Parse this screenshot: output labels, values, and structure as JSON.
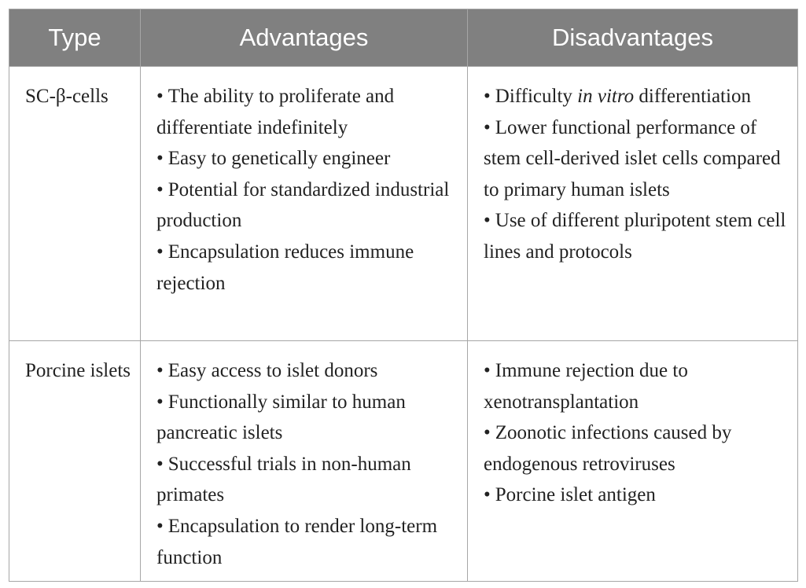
{
  "headers": [
    "Type",
    "Advantages",
    "Disadvantages"
  ],
  "rows": [
    {
      "type": "SC-β-cells",
      "advantages": [
        "The ability to proliferate and differentiate indefinitely",
        "Easy to genetically engineer",
        "Potential for standardized industrial production",
        "Encapsulation reduces immune rejection"
      ],
      "disadvantages_first": {
        "before": "Difficulty ",
        "italic": "in vitro",
        "after": " differentiation"
      },
      "disadvantages": [
        "Lower functional performance of stem cell-derived islet cells compared to primary human islets",
        "Use of different pluripotent stem cell lines and protocols"
      ]
    },
    {
      "type": "Porcine islets",
      "advantages": [
        "Easy access to islet donors",
        "Functionally similar to human pancreatic islets",
        "Successful trials in non-human primates",
        "Encapsulation to render long-term function"
      ],
      "disadvantages": [
        "Immune rejection due to xenotransplantation",
        "Zoonotic infections caused by endogenous retroviruses",
        "Porcine islet antigen"
      ]
    }
  ],
  "bullet_char": "•"
}
